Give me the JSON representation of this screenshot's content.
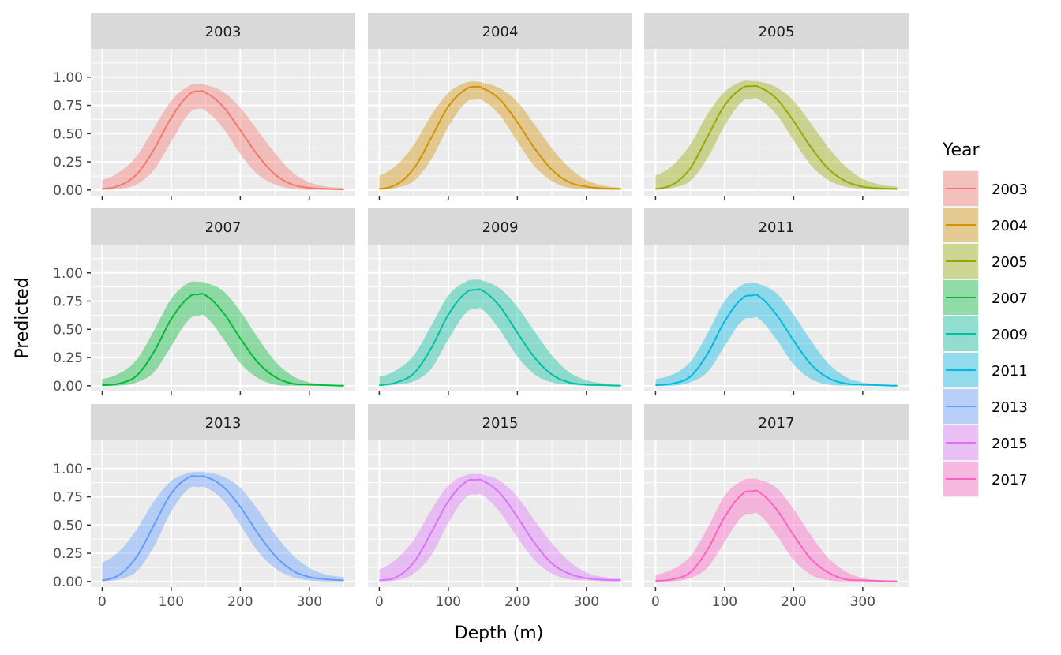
{
  "chart_data": {
    "type": "area",
    "xlabel": "Depth (m)",
    "ylabel": "Predicted",
    "xlim": [
      0,
      350
    ],
    "ylim": [
      0,
      1.0
    ],
    "x_ticks": [
      "0",
      "100",
      "200",
      "300"
    ],
    "y_ticks": [
      "0.00",
      "0.25",
      "0.50",
      "0.75",
      "1.00"
    ],
    "grid": true,
    "legend": {
      "title": "Year",
      "position": "right"
    },
    "peak_depth": 140,
    "x": [
      0,
      25,
      50,
      75,
      100,
      125,
      140,
      150,
      175,
      200,
      225,
      250,
      275,
      300,
      325,
      350
    ],
    "panels": [
      {
        "year": "2003",
        "color": "#F8766D",
        "fit": [
          0.01,
          0.04,
          0.14,
          0.36,
          0.64,
          0.84,
          0.875,
          0.86,
          0.74,
          0.53,
          0.31,
          0.14,
          0.05,
          0.02,
          0.01,
          0.005
        ],
        "lower": [
          0.0,
          0.01,
          0.05,
          0.18,
          0.43,
          0.67,
          0.72,
          0.7,
          0.55,
          0.32,
          0.14,
          0.05,
          0.01,
          0.0,
          0.0,
          0.0
        ],
        "upper": [
          0.09,
          0.16,
          0.3,
          0.55,
          0.79,
          0.92,
          0.94,
          0.93,
          0.87,
          0.73,
          0.53,
          0.33,
          0.16,
          0.07,
          0.03,
          0.02
        ]
      },
      {
        "year": "2004",
        "color": "#D39200",
        "fit": [
          0.01,
          0.05,
          0.19,
          0.46,
          0.74,
          0.89,
          0.915,
          0.9,
          0.8,
          0.6,
          0.37,
          0.18,
          0.07,
          0.03,
          0.015,
          0.01
        ],
        "lower": [
          0.0,
          0.02,
          0.08,
          0.27,
          0.56,
          0.77,
          0.8,
          0.79,
          0.66,
          0.43,
          0.21,
          0.08,
          0.02,
          0.01,
          0.0,
          0.0
        ],
        "upper": [
          0.13,
          0.22,
          0.4,
          0.66,
          0.86,
          0.95,
          0.96,
          0.95,
          0.9,
          0.78,
          0.58,
          0.37,
          0.2,
          0.09,
          0.04,
          0.02
        ]
      },
      {
        "year": "2005",
        "color": "#93AA00",
        "fit": [
          0.01,
          0.05,
          0.19,
          0.47,
          0.75,
          0.9,
          0.92,
          0.91,
          0.81,
          0.61,
          0.38,
          0.19,
          0.08,
          0.03,
          0.015,
          0.01
        ],
        "lower": [
          0.0,
          0.02,
          0.08,
          0.28,
          0.57,
          0.78,
          0.81,
          0.8,
          0.67,
          0.44,
          0.22,
          0.09,
          0.03,
          0.01,
          0.0,
          0.0
        ],
        "upper": [
          0.13,
          0.22,
          0.4,
          0.67,
          0.87,
          0.96,
          0.965,
          0.96,
          0.91,
          0.79,
          0.59,
          0.38,
          0.21,
          0.1,
          0.05,
          0.03
        ]
      },
      {
        "year": "2007",
        "color": "#00BA38",
        "fit": [
          0.005,
          0.02,
          0.09,
          0.3,
          0.59,
          0.78,
          0.81,
          0.8,
          0.65,
          0.42,
          0.21,
          0.08,
          0.02,
          0.01,
          0.005,
          0.0
        ],
        "lower": [
          0.0,
          0.0,
          0.03,
          0.12,
          0.35,
          0.58,
          0.62,
          0.61,
          0.42,
          0.2,
          0.07,
          0.01,
          0.0,
          0.0,
          0.0,
          0.0
        ],
        "upper": [
          0.06,
          0.11,
          0.23,
          0.49,
          0.77,
          0.91,
          0.92,
          0.91,
          0.84,
          0.66,
          0.43,
          0.22,
          0.09,
          0.03,
          0.01,
          0.01
        ]
      },
      {
        "year": "2009",
        "color": "#00C19F",
        "fit": [
          0.005,
          0.03,
          0.11,
          0.33,
          0.63,
          0.82,
          0.85,
          0.84,
          0.7,
          0.47,
          0.25,
          0.1,
          0.03,
          0.01,
          0.005,
          0.0
        ],
        "lower": [
          0.0,
          0.01,
          0.04,
          0.15,
          0.41,
          0.64,
          0.68,
          0.67,
          0.49,
          0.26,
          0.1,
          0.03,
          0.01,
          0.0,
          0.0,
          0.0
        ],
        "upper": [
          0.08,
          0.14,
          0.27,
          0.53,
          0.8,
          0.92,
          0.94,
          0.93,
          0.86,
          0.7,
          0.48,
          0.27,
          0.12,
          0.05,
          0.02,
          0.01
        ]
      },
      {
        "year": "2011",
        "color": "#00B9E3",
        "fit": [
          0.005,
          0.02,
          0.08,
          0.28,
          0.57,
          0.77,
          0.8,
          0.79,
          0.63,
          0.4,
          0.19,
          0.07,
          0.02,
          0.01,
          0.005,
          0.0
        ],
        "lower": [
          0.0,
          0.0,
          0.03,
          0.12,
          0.35,
          0.57,
          0.6,
          0.59,
          0.41,
          0.19,
          0.06,
          0.01,
          0.0,
          0.0,
          0.0,
          0.0
        ],
        "upper": [
          0.06,
          0.1,
          0.21,
          0.46,
          0.75,
          0.89,
          0.91,
          0.9,
          0.82,
          0.63,
          0.4,
          0.2,
          0.08,
          0.03,
          0.01,
          0.01
        ]
      },
      {
        "year": "2013",
        "color": "#619CFF",
        "fit": [
          0.01,
          0.06,
          0.22,
          0.5,
          0.78,
          0.92,
          0.93,
          0.925,
          0.84,
          0.66,
          0.43,
          0.23,
          0.1,
          0.04,
          0.02,
          0.01
        ],
        "lower": [
          0.0,
          0.02,
          0.09,
          0.31,
          0.62,
          0.82,
          0.835,
          0.83,
          0.72,
          0.5,
          0.27,
          0.12,
          0.04,
          0.01,
          0.0,
          0.0
        ],
        "upper": [
          0.17,
          0.27,
          0.46,
          0.71,
          0.89,
          0.96,
          0.97,
          0.965,
          0.93,
          0.83,
          0.64,
          0.42,
          0.24,
          0.12,
          0.06,
          0.04
        ]
      },
      {
        "year": "2015",
        "color": "#DB72FB",
        "fit": [
          0.01,
          0.04,
          0.17,
          0.43,
          0.71,
          0.88,
          0.9,
          0.89,
          0.78,
          0.57,
          0.34,
          0.16,
          0.07,
          0.03,
          0.015,
          0.01
        ],
        "lower": [
          0.0,
          0.01,
          0.07,
          0.23,
          0.52,
          0.74,
          0.77,
          0.76,
          0.61,
          0.39,
          0.19,
          0.07,
          0.02,
          0.01,
          0.0,
          0.0
        ],
        "upper": [
          0.11,
          0.2,
          0.37,
          0.63,
          0.85,
          0.94,
          0.95,
          0.945,
          0.89,
          0.75,
          0.54,
          0.34,
          0.18,
          0.08,
          0.04,
          0.03
        ]
      },
      {
        "year": "2017",
        "color": "#FF61C3",
        "fit": [
          0.005,
          0.02,
          0.08,
          0.28,
          0.57,
          0.77,
          0.8,
          0.79,
          0.64,
          0.41,
          0.2,
          0.08,
          0.02,
          0.01,
          0.005,
          0.0
        ],
        "lower": [
          0.0,
          0.0,
          0.03,
          0.12,
          0.35,
          0.57,
          0.6,
          0.59,
          0.41,
          0.19,
          0.06,
          0.01,
          0.0,
          0.0,
          0.0,
          0.0
        ],
        "upper": [
          0.06,
          0.11,
          0.22,
          0.47,
          0.76,
          0.89,
          0.91,
          0.9,
          0.83,
          0.64,
          0.41,
          0.21,
          0.09,
          0.03,
          0.01,
          0.01
        ]
      }
    ]
  }
}
